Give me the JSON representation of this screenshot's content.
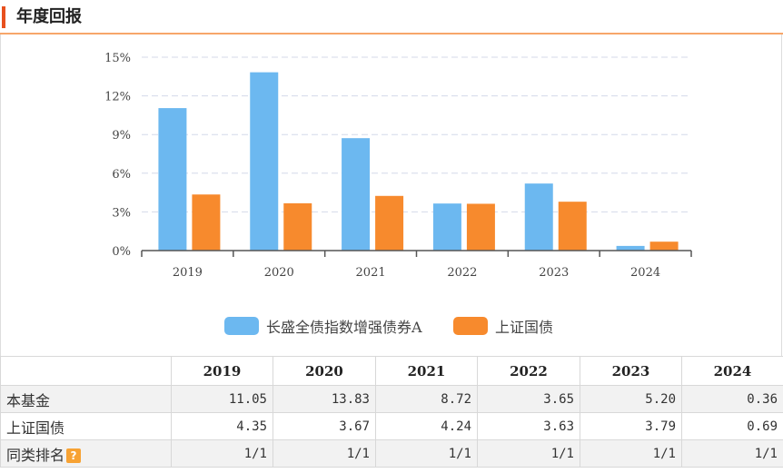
{
  "header": {
    "title": "年度回报"
  },
  "chart_data": {
    "type": "bar",
    "categories": [
      "2019",
      "2020",
      "2021",
      "2022",
      "2023",
      "2024"
    ],
    "series": [
      {
        "name": "长盛全债指数增强债券A",
        "color": "#6cb8f0",
        "values": [
          11.05,
          13.83,
          8.72,
          3.65,
          5.2,
          0.36
        ]
      },
      {
        "name": "上证国债",
        "color": "#f78a2d",
        "values": [
          4.35,
          3.67,
          4.24,
          3.63,
          3.79,
          0.69
        ]
      }
    ],
    "y_ticks": [
      "0%",
      "3%",
      "6%",
      "9%",
      "12%",
      "15%"
    ],
    "ylim": [
      0,
      15
    ],
    "grid": true,
    "legend_position": "bottom"
  },
  "table": {
    "corner": "",
    "years": [
      "2019",
      "2020",
      "2021",
      "2022",
      "2023",
      "2024"
    ],
    "rows": [
      {
        "label": "本基金",
        "values": [
          "11.05",
          "13.83",
          "8.72",
          "3.65",
          "5.20",
          "0.36"
        ]
      },
      {
        "label": "上证国债",
        "values": [
          "4.35",
          "3.67",
          "4.24",
          "3.63",
          "3.79",
          "0.69"
        ]
      },
      {
        "label": "同类排名",
        "help_icon": "question-icon",
        "values": [
          "1/1",
          "1/1",
          "1/1",
          "1/1",
          "1/1",
          "1/1"
        ]
      }
    ]
  }
}
